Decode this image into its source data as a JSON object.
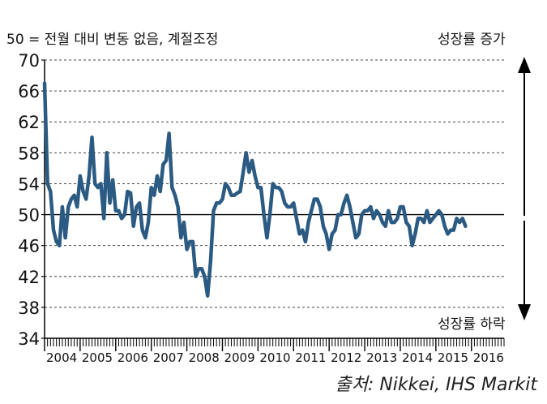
{
  "note": "50 = 전월 대비 변동 없음, 계절조정",
  "arrow_up_label": "성장률 증가",
  "arrow_down_label": "성장률 하락",
  "source": "출처: Nikkei, IHS Markit",
  "colors": {
    "line": "#2b5a82",
    "axis": "#000000",
    "grid": "#444444"
  },
  "chart_data": {
    "type": "line",
    "title": "",
    "xlabel": "",
    "ylabel": "",
    "ylim": [
      34,
      70
    ],
    "yticks": [
      34,
      38,
      42,
      46,
      50,
      54,
      58,
      62,
      66,
      70
    ],
    "xticks": [
      "2004",
      "2005",
      "2006",
      "2007",
      "2008",
      "2009",
      "2010",
      "2011",
      "2012",
      "2013",
      "2014",
      "2015",
      "2016"
    ],
    "xlim": [
      "2004-01",
      "2016-11"
    ],
    "grid": true,
    "reference_line": 50,
    "series": [
      {
        "name": "",
        "start": "2004-01",
        "frequency": "monthly",
        "values": [
          67.0,
          54.0,
          53.0,
          48.0,
          46.5,
          46.0,
          51.0,
          47.0,
          51.0,
          52.0,
          52.5,
          51.0,
          55.0,
          53.0,
          52.0,
          55.0,
          60.0,
          54.0,
          53.5,
          54.0,
          49.5,
          58.0,
          51.5,
          54.5,
          50.5,
          50.5,
          49.5,
          50.0,
          53.0,
          52.8,
          48.5,
          51.0,
          51.5,
          48.0,
          47.0,
          49.0,
          53.5,
          52.5,
          55.0,
          53.0,
          56.5,
          57.0,
          60.5,
          53.5,
          52.5,
          51.0,
          47.0,
          49.0,
          45.5,
          46.5,
          46.5,
          42.0,
          43.0,
          43.0,
          42.0,
          39.5,
          44.0,
          50.5,
          51.5,
          51.5,
          52.0,
          54.0,
          53.5,
          52.5,
          52.5,
          52.8,
          53.0,
          55.5,
          58.0,
          55.5,
          57.0,
          55.0,
          53.5,
          53.5,
          50.0,
          47.0,
          50.0,
          54.0,
          53.5,
          53.5,
          53.0,
          51.5,
          51.0,
          51.0,
          51.5,
          49.5,
          47.5,
          48.0,
          46.5,
          49.0,
          50.5,
          52.0,
          52.0,
          51.0,
          48.5,
          47.5,
          45.5,
          47.5,
          48.0,
          50.0,
          50.0,
          51.5,
          52.5,
          51.0,
          49.0,
          47.0,
          47.5,
          50.0,
          50.5,
          50.5,
          51.0,
          49.5,
          50.5,
          50.0,
          49.0,
          48.5,
          50.5,
          49.0,
          49.0,
          49.5,
          51.0,
          51.0,
          49.0,
          48.5,
          46.0,
          47.5,
          49.5,
          49.5,
          49.0,
          50.5,
          49.0,
          49.5,
          50.0,
          50.5,
          50.0,
          48.5,
          47.5,
          48.0,
          48.0,
          49.5,
          49.0,
          49.5,
          48.5
        ]
      }
    ]
  }
}
